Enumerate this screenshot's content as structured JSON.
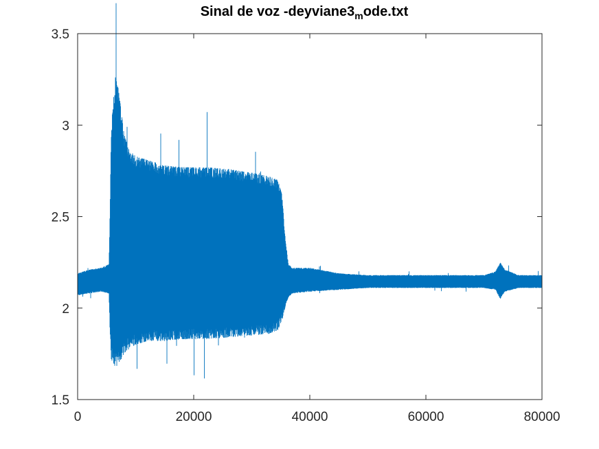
{
  "chart_data": {
    "type": "line",
    "title": {
      "main": "Sinal de voz -deyviane3",
      "subscript": "m",
      "suffix": "ode.txt"
    },
    "xlabel": "",
    "ylabel": "",
    "xlim": [
      0,
      80000
    ],
    "ylim": [
      1.5,
      3.5
    ],
    "xticks": [
      0,
      20000,
      40000,
      60000,
      80000
    ],
    "xtick_labels": [
      "0",
      "20000",
      "40000",
      "60000",
      "80000"
    ],
    "yticks": [
      1.5,
      2,
      2.5,
      3,
      3.5
    ],
    "ytick_labels": [
      "1.5",
      "2",
      "2.5",
      "3",
      "3.5"
    ],
    "grid": false,
    "legend": "none",
    "line_color": "#0072BD",
    "n_samples": 80000,
    "series": [
      {
        "envelope": [
          {
            "x": 0,
            "min": 2.07,
            "max": 2.19
          },
          {
            "x": 2000,
            "min": 2.08,
            "max": 2.21
          },
          {
            "x": 4000,
            "min": 2.09,
            "max": 2.22
          },
          {
            "x": 5400,
            "min": 2.08,
            "max": 2.24
          },
          {
            "x": 5600,
            "min": 1.85,
            "max": 2.55
          },
          {
            "x": 5800,
            "min": 1.72,
            "max": 3.0
          },
          {
            "x": 6200,
            "min": 1.68,
            "max": 3.15
          },
          {
            "x": 6500,
            "min": 1.66,
            "max": 3.27
          },
          {
            "x": 7000,
            "min": 1.7,
            "max": 3.2
          },
          {
            "x": 7500,
            "min": 1.72,
            "max": 3.08
          },
          {
            "x": 8000,
            "min": 1.75,
            "max": 2.95
          },
          {
            "x": 9000,
            "min": 1.78,
            "max": 2.86
          },
          {
            "x": 10000,
            "min": 1.8,
            "max": 2.83
          },
          {
            "x": 12000,
            "min": 1.82,
            "max": 2.81
          },
          {
            "x": 15000,
            "min": 1.82,
            "max": 2.78
          },
          {
            "x": 18000,
            "min": 1.83,
            "max": 2.77
          },
          {
            "x": 22000,
            "min": 1.83,
            "max": 2.77
          },
          {
            "x": 26000,
            "min": 1.84,
            "max": 2.76
          },
          {
            "x": 30000,
            "min": 1.85,
            "max": 2.74
          },
          {
            "x": 33000,
            "min": 1.86,
            "max": 2.72
          },
          {
            "x": 34500,
            "min": 1.88,
            "max": 2.7
          },
          {
            "x": 35200,
            "min": 1.93,
            "max": 2.62
          },
          {
            "x": 35800,
            "min": 2.01,
            "max": 2.38
          },
          {
            "x": 36300,
            "min": 2.06,
            "max": 2.24
          },
          {
            "x": 37000,
            "min": 2.08,
            "max": 2.22
          },
          {
            "x": 40000,
            "min": 2.09,
            "max": 2.22
          },
          {
            "x": 45000,
            "min": 2.1,
            "max": 2.19
          },
          {
            "x": 50000,
            "min": 2.11,
            "max": 2.18
          },
          {
            "x": 60000,
            "min": 2.11,
            "max": 2.18
          },
          {
            "x": 70000,
            "min": 2.11,
            "max": 2.18
          },
          {
            "x": 72000,
            "min": 2.1,
            "max": 2.2
          },
          {
            "x": 72800,
            "min": 2.05,
            "max": 2.25
          },
          {
            "x": 73600,
            "min": 2.09,
            "max": 2.21
          },
          {
            "x": 76000,
            "min": 2.11,
            "max": 2.18
          },
          {
            "x": 80000,
            "min": 2.11,
            "max": 2.18
          }
        ]
      }
    ]
  }
}
